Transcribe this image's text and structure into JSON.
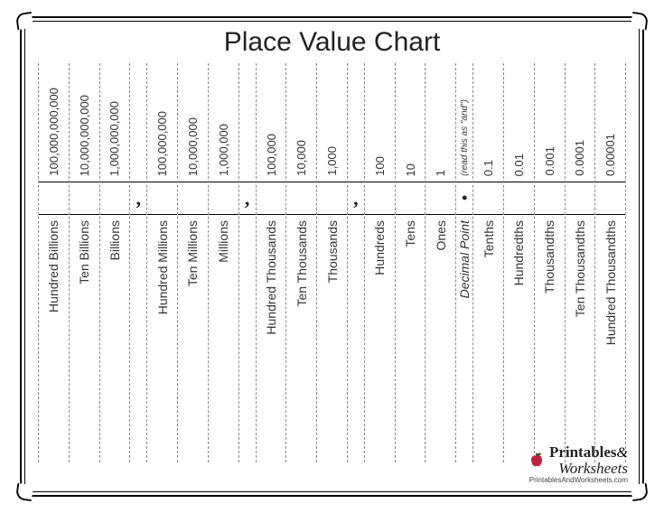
{
  "title": "Place Value Chart",
  "columns": [
    {
      "value": "100,000,000,000",
      "name": "Hundred Billions"
    },
    {
      "value": "10,000,000,000",
      "name": "Ten Billions"
    },
    {
      "value": "1,000,000,000",
      "name": "Billions"
    },
    {
      "sep": ","
    },
    {
      "value": "100,000,000",
      "name": "Hundred Millions"
    },
    {
      "value": "10,000,000",
      "name": "Ten Millions"
    },
    {
      "value": "1,000,000",
      "name": "Millions"
    },
    {
      "sep": ","
    },
    {
      "value": "100,000",
      "name": "Hundred Thousands"
    },
    {
      "value": "10,000",
      "name": "Ten Thousands"
    },
    {
      "value": "1,000",
      "name": "Thousands"
    },
    {
      "sep": ","
    },
    {
      "value": "100",
      "name": "Hundreds"
    },
    {
      "value": "10",
      "name": "Tens"
    },
    {
      "value": "1",
      "name": "Ones"
    },
    {
      "sep": "•",
      "value": "(read this as \"and\")",
      "name": "Decimal Point"
    },
    {
      "value": "0.1",
      "name": "Tenths"
    },
    {
      "value": "0.01",
      "name": "Hundredths"
    },
    {
      "value": "0.001",
      "name": "Thousandths"
    },
    {
      "value": "0.0001",
      "name": "Ten Thousandths"
    },
    {
      "value": "0.00001",
      "name": "Hundred Thousandths"
    }
  ],
  "footer": {
    "brand_line1": "Printables",
    "brand_amp": "&",
    "brand_line2": "Worksheets",
    "url": "PrintablesAndWorksheets.com",
    "apple_color": "#c41e3a",
    "leaf_color": "#2d5016"
  }
}
